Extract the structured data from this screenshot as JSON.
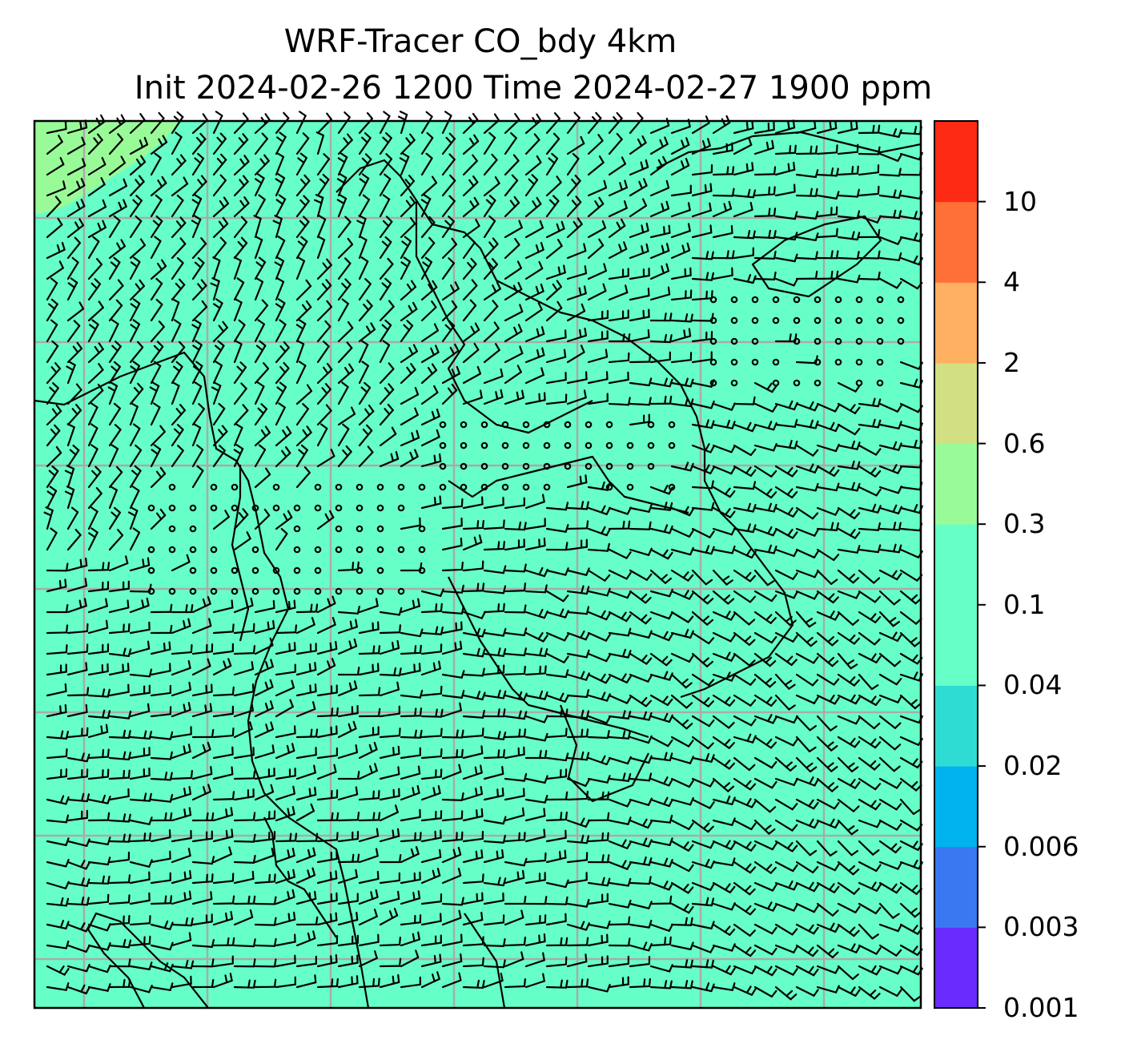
{
  "title": {
    "line1": "WRF-Tracer CO_bdy 4km",
    "line2": "Init 2024-02-26 1200 Time 2024-02-27 1900 ppm"
  },
  "map": {
    "field_fill_color": "#66ffc8",
    "patch_color": "#98fb98",
    "grid_color": "#aaaaaa",
    "coast_color": "#000000",
    "barb_color": "#000000"
  },
  "colorbar": {
    "levels": [
      "0.001",
      "0.003",
      "0.006",
      "0.02",
      "0.04",
      "0.1",
      "0.3",
      "0.6",
      "2",
      "4",
      "10"
    ],
    "colors": [
      "#6a2bff",
      "#3a78f2",
      "#00b2ee",
      "#2fdcd4",
      "#66ffc8",
      "#66ffc8",
      "#98fb98",
      "#d2df83",
      "#ffb060",
      "#ff7038",
      "#ff2a14"
    ]
  }
}
